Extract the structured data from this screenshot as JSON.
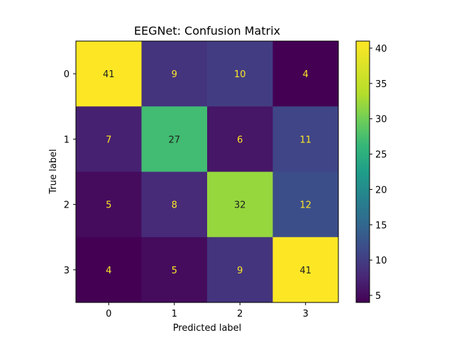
{
  "chart_data": {
    "type": "heatmap",
    "title": "EEGNet: Confusion Matrix",
    "xlabel": "Predicted label",
    "ylabel": "True label",
    "x_categories": [
      "0",
      "1",
      "2",
      "3"
    ],
    "y_categories": [
      "0",
      "1",
      "2",
      "3"
    ],
    "matrix": [
      [
        41,
        9,
        10,
        4
      ],
      [
        7,
        27,
        6,
        11
      ],
      [
        5,
        8,
        32,
        12
      ],
      [
        4,
        5,
        9,
        41
      ]
    ],
    "colormap": "viridis",
    "vmin": 4,
    "vmax": 41,
    "colorbar_ticks": [
      "5",
      "10",
      "15",
      "20",
      "25",
      "30",
      "35",
      "40"
    ],
    "colors": {
      "text_on_dark": "#fde725",
      "text_on_light": "#1f1f1f"
    }
  }
}
